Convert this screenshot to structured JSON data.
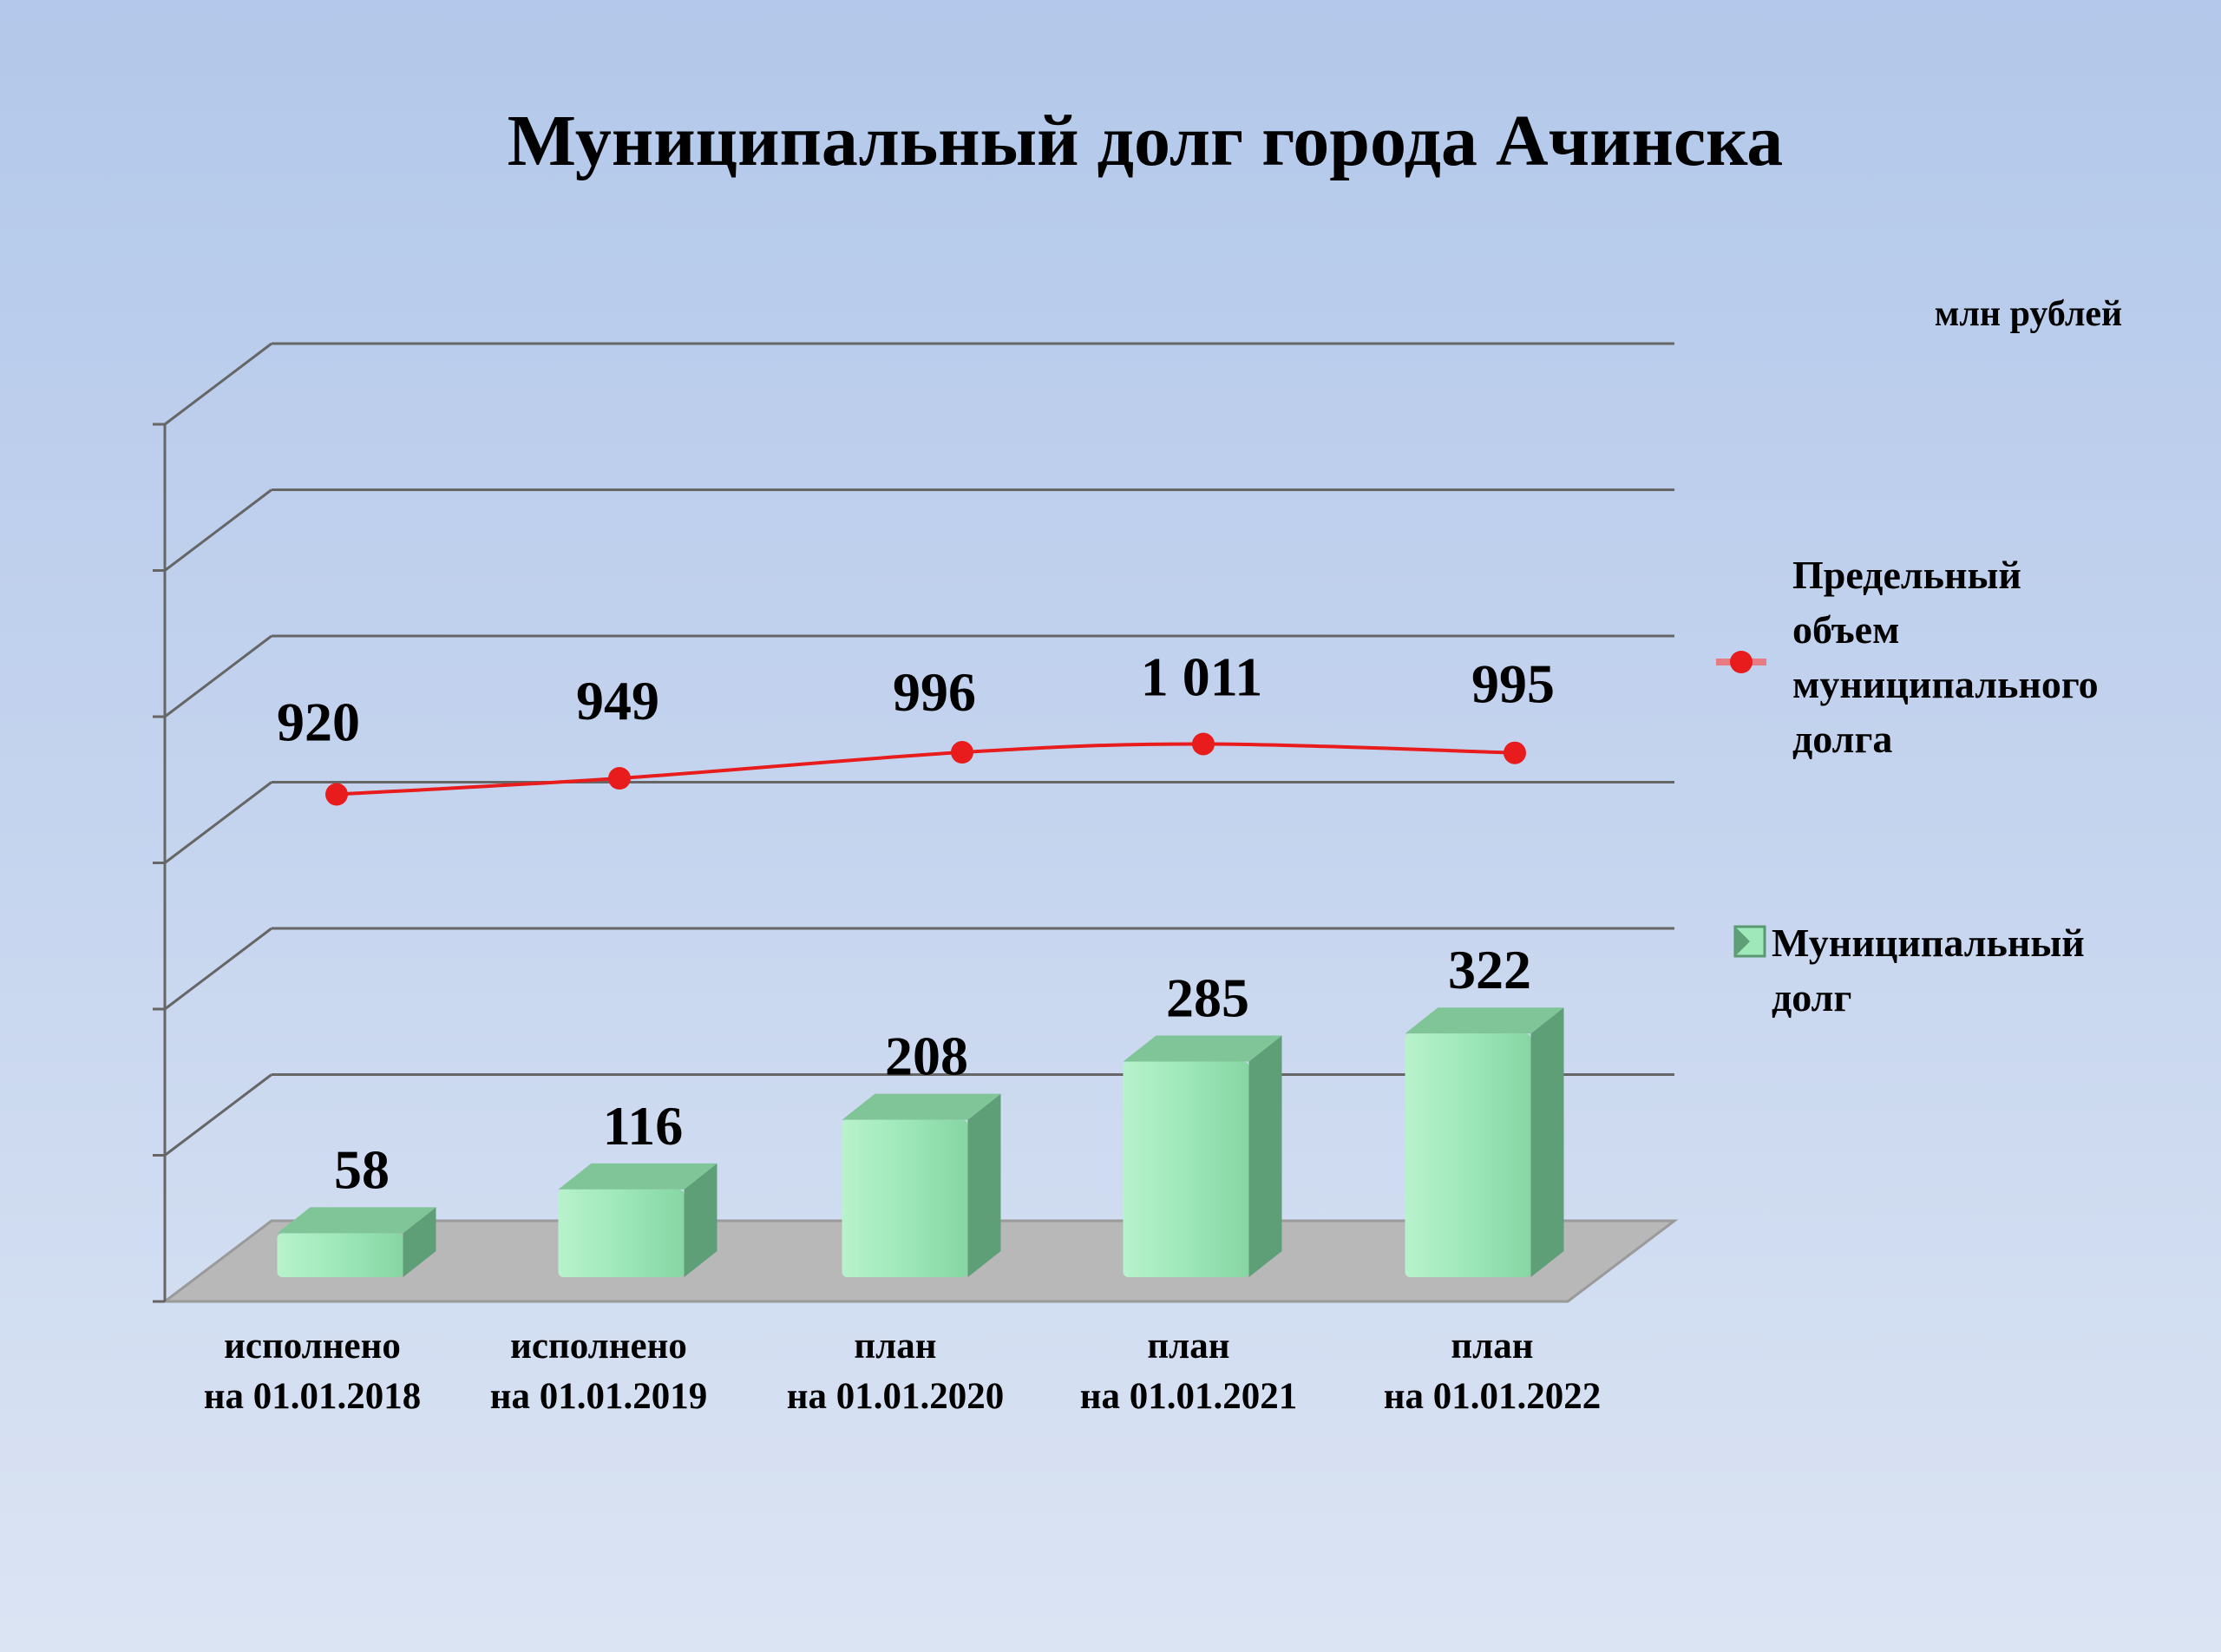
{
  "chart_data": {
    "type": "bar",
    "title": "Муниципальный  долг  города Ачинска",
    "unit_label": "млн рублей",
    "categories": [
      [
        "исполнено",
        "на 01.01.2018"
      ],
      [
        "исполнено",
        "на 01.01.2019"
      ],
      [
        "план",
        "на 01.01.2020"
      ],
      [
        "план",
        "на 01.01.2021"
      ],
      [
        "план",
        "на 01.01.2022"
      ]
    ],
    "series": [
      {
        "name": "Муниципальный долг",
        "name_lines": [
          "Муниципальный",
          "долг"
        ],
        "kind": "bar",
        "values": [
          58,
          116,
          208,
          285,
          322
        ],
        "labels": [
          "58",
          "116",
          "208",
          "285",
          "322"
        ],
        "color": "#9ee8b9"
      },
      {
        "name": "Предельный объем муниципального долга",
        "name_lines": [
          "Предельный",
          "объем",
          "муниципального",
          "долга"
        ],
        "kind": "line",
        "values": [
          920,
          949,
          996,
          1011,
          995
        ],
        "labels": [
          "920",
          "949",
          "996",
          "1 011",
          "995"
        ],
        "color": "#e81c1c"
      }
    ],
    "grid": true,
    "legend_position": "right"
  }
}
